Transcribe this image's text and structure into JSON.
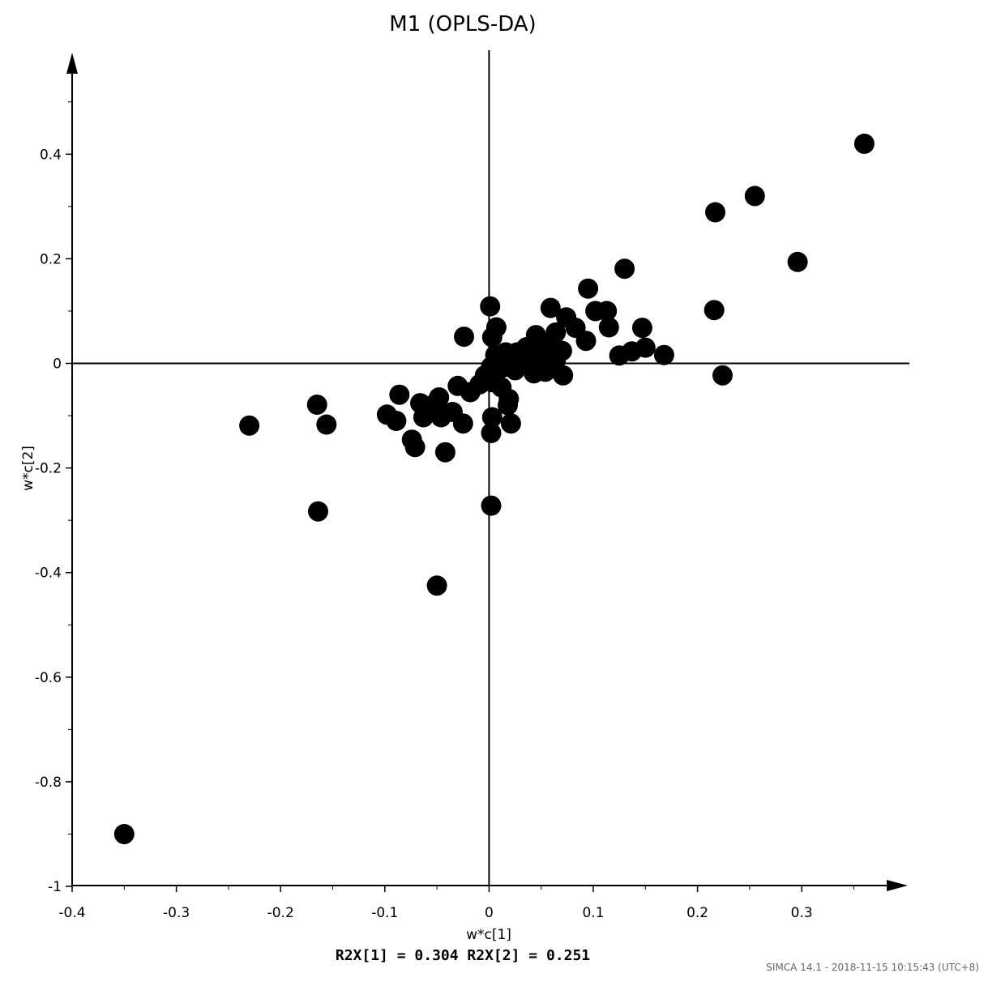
{
  "chart_data": {
    "type": "scatter",
    "title": "M1 (OPLS-DA)",
    "xlabel": "w*c[1]",
    "ylabel": "w*c[2]",
    "xlim": [
      -0.4,
      0.4
    ],
    "ylim": [
      -1,
      0.6
    ],
    "x_ticks": [
      "-0.4",
      "-0.3",
      "-0.2",
      "-0.1",
      "0",
      "0.1",
      "0.2",
      "0.3"
    ],
    "x_tick_values": [
      -0.4,
      -0.3,
      -0.2,
      -0.1,
      0,
      0.1,
      0.2,
      0.3
    ],
    "y_ticks": [
      "0.4",
      "0.2",
      "0",
      "-0.2",
      "-0.4",
      "-0.6",
      "-0.8",
      "-1"
    ],
    "y_tick_values": [
      0.4,
      0.2,
      0,
      -0.2,
      -0.4,
      -0.6,
      -0.8,
      -1
    ],
    "grid": false,
    "marker_color": "#000000",
    "annotation": "R2X[1] = 0.304 R2X[2] = 0.251",
    "footer": "SIMCA 14.1 - 2018-11-15 10:15:43 (UTC+8)",
    "points": [
      [
        0.36,
        0.42
      ],
      [
        0.255,
        0.32
      ],
      [
        0.217,
        0.289
      ],
      [
        0.296,
        0.194
      ],
      [
        0.13,
        0.181
      ],
      [
        0.216,
        0.102
      ],
      [
        0.224,
        -0.023
      ],
      [
        0.095,
        0.143
      ],
      [
        0.102,
        0.1
      ],
      [
        0.113,
        0.1
      ],
      [
        0.059,
        0.106
      ],
      [
        0.074,
        0.088
      ],
      [
        0.115,
        0.069
      ],
      [
        0.147,
        0.068
      ],
      [
        0.083,
        0.068
      ],
      [
        0.093,
        0.043
      ],
      [
        0.125,
        0.015
      ],
      [
        0.137,
        0.023
      ],
      [
        0.15,
        0.03
      ],
      [
        0.168,
        0.016
      ],
      [
        0.001,
        0.109
      ],
      [
        0.007,
        0.069
      ],
      [
        0.003,
        0.05
      ],
      [
        -0.024,
        0.051
      ],
      [
        0.045,
        0.054
      ],
      [
        0.064,
        0.059
      ],
      [
        0.056,
        0.036
      ],
      [
        0.036,
        0.031
      ],
      [
        0.027,
        0.021
      ],
      [
        0.016,
        0.021
      ],
      [
        0.006,
        0.016
      ],
      [
        0.048,
        0.021
      ],
      [
        0.07,
        0.024
      ],
      [
        0.015,
        0.004
      ],
      [
        0.029,
        0.003
      ],
      [
        0.04,
        0.006
      ],
      [
        0.053,
        0.006
      ],
      [
        0.064,
        0.006
      ],
      [
        0.002,
        -0.006
      ],
      [
        0.012,
        -0.009
      ],
      [
        0.025,
        -0.013
      ],
      [
        0.043,
        -0.019
      ],
      [
        0.054,
        -0.016
      ],
      [
        0.071,
        -0.023
      ],
      [
        -0.004,
        -0.023
      ],
      [
        -0.009,
        -0.04
      ],
      [
        0.003,
        -0.036
      ],
      [
        0.012,
        -0.046
      ],
      [
        -0.018,
        -0.055
      ],
      [
        -0.03,
        -0.043
      ],
      [
        0.019,
        -0.068
      ],
      [
        0.018,
        -0.08
      ],
      [
        0.003,
        -0.103
      ],
      [
        0.021,
        -0.115
      ],
      [
        0.002,
        -0.133
      ],
      [
        -0.025,
        -0.115
      ],
      [
        -0.048,
        -0.065
      ],
      [
        -0.052,
        -0.077
      ],
      [
        -0.066,
        -0.076
      ],
      [
        -0.086,
        -0.06
      ],
      [
        -0.098,
        -0.098
      ],
      [
        -0.089,
        -0.11
      ],
      [
        -0.035,
        -0.093
      ],
      [
        -0.046,
        -0.103
      ],
      [
        -0.063,
        -0.103
      ],
      [
        -0.074,
        -0.146
      ],
      [
        -0.071,
        -0.16
      ],
      [
        -0.042,
        -0.17
      ],
      [
        -0.165,
        -0.079
      ],
      [
        -0.156,
        -0.117
      ],
      [
        -0.23,
        -0.119
      ],
      [
        -0.164,
        -0.283
      ],
      [
        0.002,
        -0.272
      ],
      [
        -0.05,
        -0.425
      ],
      [
        -0.35,
        -0.9
      ]
    ]
  }
}
